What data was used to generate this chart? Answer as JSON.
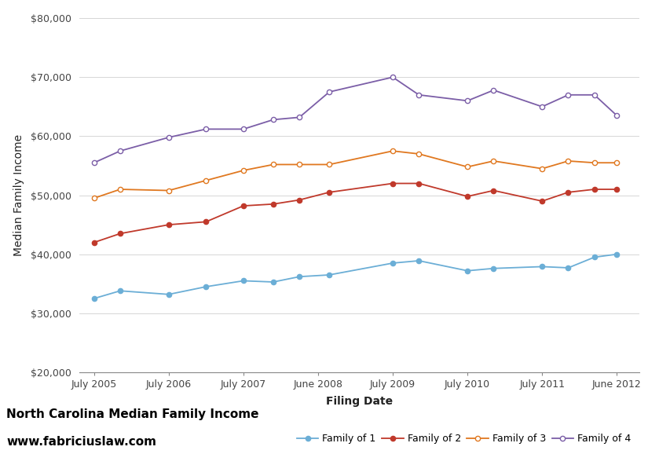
{
  "title_line1": "North Carolina Median Family Income",
  "title_line2": "www.fabriciuslaw.com",
  "xlabel": "Filing Date",
  "ylabel": "Median Family Income",
  "ylim": [
    20000,
    80000
  ],
  "yticks": [
    20000,
    30000,
    40000,
    50000,
    60000,
    70000,
    80000
  ],
  "x_labels": [
    "July 2005",
    "July 2006",
    "July 2007",
    "June 2008",
    "July 2009",
    "July 2010",
    "July 2011",
    "June 2012"
  ],
  "x_positions": [
    0,
    2,
    4,
    6,
    8,
    10,
    12,
    14
  ],
  "series": [
    {
      "label": "Family of 1",
      "color": "#6baed6",
      "markerfacecolor": "#6baed6",
      "x_values": [
        0,
        0.7,
        2,
        3.0,
        4,
        4.8,
        5.5,
        6.3,
        8,
        8.7,
        10,
        10.7,
        12,
        12.7,
        13.4,
        14
      ],
      "y_values": [
        32500,
        33800,
        33200,
        34500,
        35500,
        35300,
        36200,
        36500,
        38500,
        38900,
        37200,
        37600,
        37900,
        37700,
        39500,
        40000
      ]
    },
    {
      "label": "Family of 2",
      "color": "#c0392b",
      "markerfacecolor": "#c0392b",
      "x_values": [
        0,
        0.7,
        2,
        3.0,
        4,
        4.8,
        5.5,
        6.3,
        8,
        8.7,
        10,
        10.7,
        12,
        12.7,
        13.4,
        14
      ],
      "y_values": [
        42000,
        43500,
        45000,
        45500,
        48200,
        48500,
        49200,
        50500,
        52000,
        52000,
        49800,
        50800,
        49000,
        50500,
        51000,
        51000
      ]
    },
    {
      "label": "Family of 3",
      "color": "#e07820",
      "markerfacecolor": "#ffffff",
      "x_values": [
        0,
        0.7,
        2,
        3.0,
        4,
        4.8,
        5.5,
        6.3,
        8,
        8.7,
        10,
        10.7,
        12,
        12.7,
        13.4,
        14
      ],
      "y_values": [
        49500,
        51000,
        50800,
        52500,
        54200,
        55200,
        55200,
        55200,
        57500,
        57000,
        54800,
        55800,
        54500,
        55800,
        55500,
        55500
      ]
    },
    {
      "label": "Family of 4",
      "color": "#7b5ea7",
      "markerfacecolor": "#ffffff",
      "x_values": [
        0,
        0.7,
        2,
        3.0,
        4,
        4.8,
        5.5,
        6.3,
        8,
        8.7,
        10,
        10.7,
        12,
        12.7,
        13.4,
        14
      ],
      "y_values": [
        55500,
        57500,
        59800,
        61200,
        61200,
        62800,
        63200,
        67500,
        70000,
        67000,
        66000,
        67800,
        65000,
        67000,
        67000,
        63500
      ]
    }
  ],
  "background_color": "#ffffff",
  "grid_color": "#d0d0d0",
  "tick_label_color": "#444444",
  "axis_label_fontsize": 10,
  "tick_fontsize": 9,
  "legend_fontsize": 9,
  "title_fontsize": 11
}
